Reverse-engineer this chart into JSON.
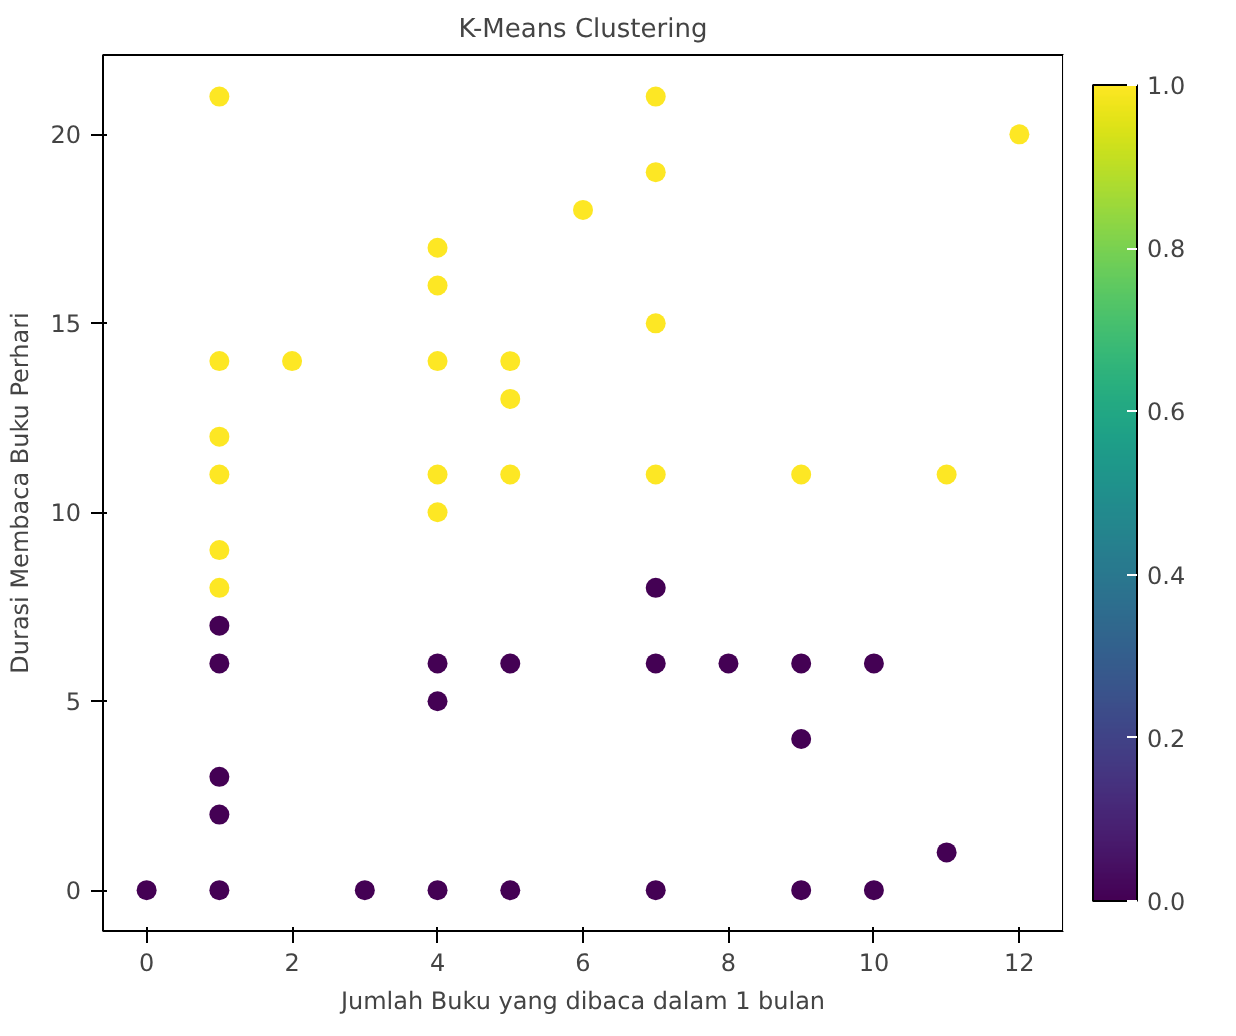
{
  "chart_data": {
    "type": "scatter",
    "title": "K-Means Clustering",
    "xlabel": "Jumlah Buku yang dibaca dalam 1 bulan",
    "ylabel": "Durasi Membaca Buku Perhari",
    "x": [
      1,
      1,
      1,
      1,
      1,
      1,
      2,
      4,
      4,
      4,
      4,
      4,
      5,
      5,
      5,
      6,
      7,
      7,
      7,
      7,
      9,
      11,
      12,
      0,
      1,
      1,
      1,
      1,
      1,
      3,
      4,
      4,
      4,
      5,
      5,
      7,
      7,
      7,
      8,
      9,
      9,
      9,
      10,
      10,
      11
    ],
    "values": [
      21,
      14,
      12,
      11,
      9,
      8,
      14,
      17,
      16,
      14,
      11,
      10,
      14,
      13,
      11,
      18,
      21,
      19,
      15,
      11,
      11,
      11,
      20,
      0,
      7,
      6,
      3,
      2,
      0,
      0,
      6,
      5,
      0,
      6,
      0,
      8,
      6,
      0,
      6,
      6,
      4,
      0,
      6,
      0,
      1
    ],
    "cvalues": [
      1,
      1,
      1,
      1,
      1,
      1,
      1,
      1,
      1,
      1,
      1,
      1,
      1,
      1,
      1,
      1,
      1,
      1,
      1,
      1,
      1,
      1,
      1,
      0,
      0,
      0,
      0,
      0,
      0,
      0,
      0,
      0,
      0,
      0,
      0,
      0,
      0,
      0,
      0,
      0,
      0,
      0,
      0,
      0,
      0
    ],
    "xlim": [
      -0.6,
      12.6
    ],
    "ylim": [
      -1.08,
      22.1
    ],
    "xticks": [
      0,
      2,
      4,
      6,
      8,
      10,
      12
    ],
    "yticks": [
      0,
      5,
      10,
      15,
      20
    ],
    "clim": [
      0,
      1
    ],
    "cticks": [
      {
        "value": 0,
        "label": "0.0"
      },
      {
        "value": 0.2,
        "label": "0.2"
      },
      {
        "value": 0.4,
        "label": "0.4"
      },
      {
        "value": 0.6,
        "label": "0.6"
      },
      {
        "value": 0.8,
        "label": "0.8"
      },
      {
        "value": 1,
        "label": "1.0"
      }
    ],
    "marker": "circle",
    "grid": false
  }
}
